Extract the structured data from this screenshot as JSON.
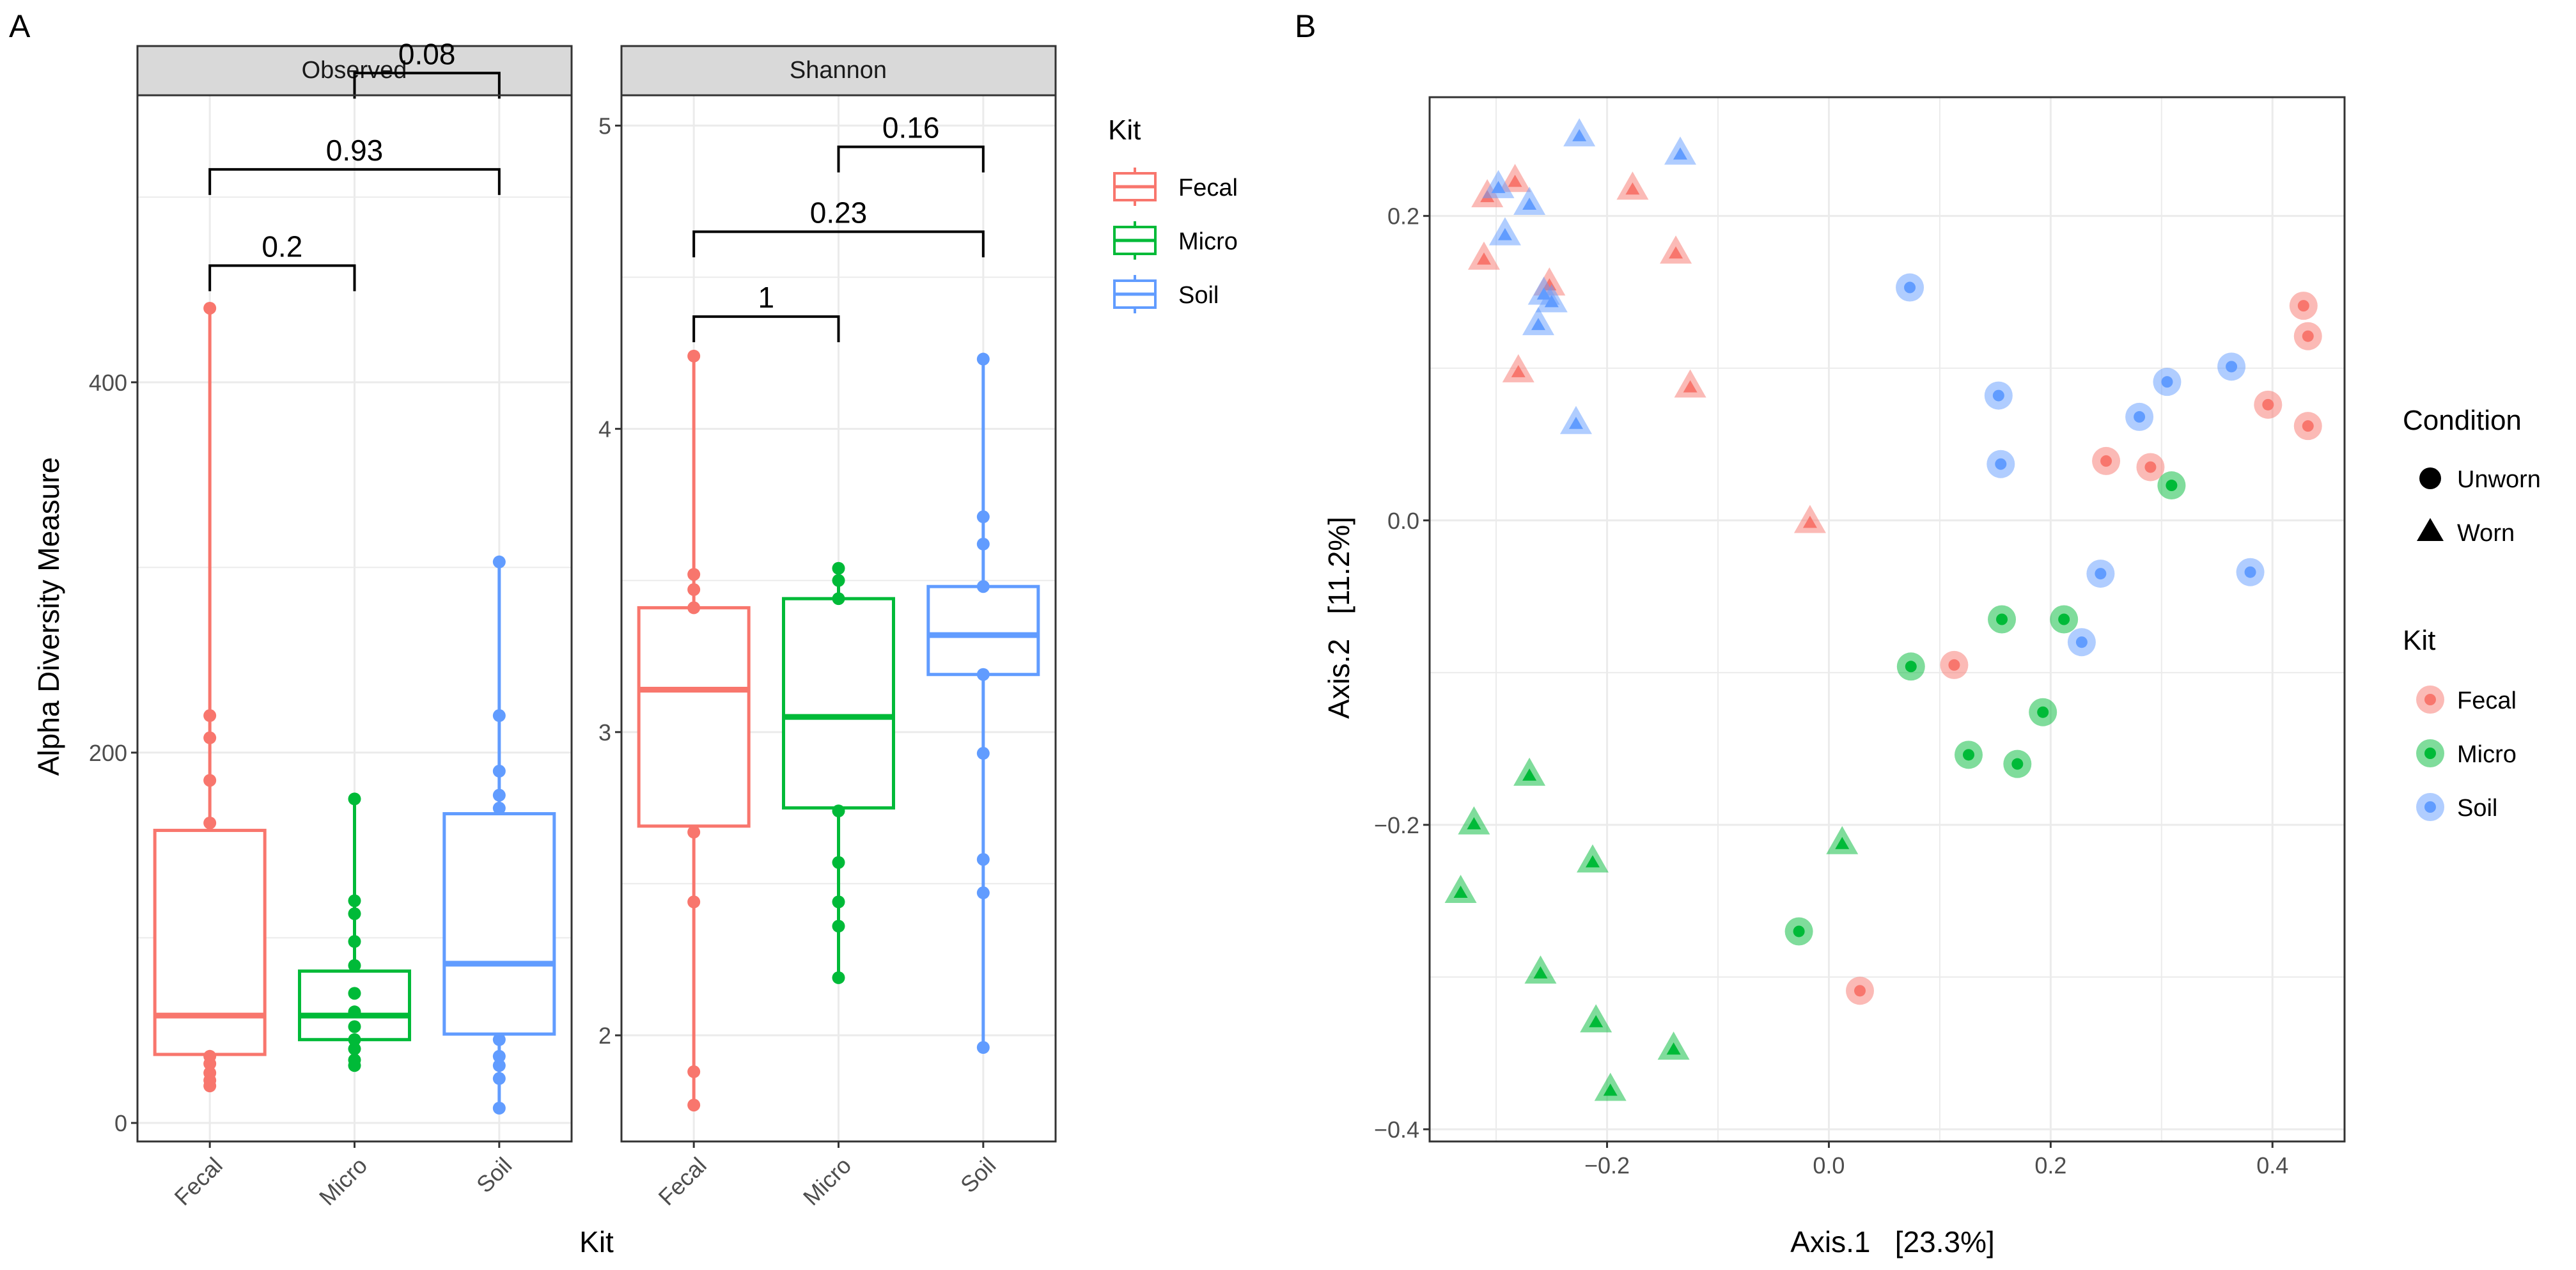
{
  "colors": {
    "Fecal": "#F8766D",
    "Micro": "#00BA38",
    "Soil": "#619CFF",
    "strip_fill": "#D9D9D9",
    "grid": "#EBEBEB",
    "axis_text": "#4D4D4D",
    "bracket": "#000000"
  },
  "panel_labels": {
    "a": "A",
    "b": "B"
  },
  "chart_data": [
    {
      "type": "boxplot",
      "panel": "A",
      "facet": "Observed",
      "xlabel": "Kit",
      "ylabel": "Alpha Diversity Measure",
      "categories": [
        "Fecal",
        "Micro",
        "Soil"
      ],
      "ylim": [
        -10,
        555
      ],
      "yticks": [
        0,
        200,
        400
      ],
      "minor_yticks": [
        100,
        300,
        500
      ],
      "boxes": [
        {
          "kit": "Fecal",
          "q1": 37,
          "median": 58,
          "q3": 158,
          "whisker_low": 20,
          "whisker_high": 440,
          "points": [
            20,
            23,
            27,
            32,
            36,
            162,
            185,
            208,
            220,
            440
          ]
        },
        {
          "kit": "Micro",
          "q1": 45,
          "median": 58,
          "q3": 82,
          "whisker_low": 31,
          "whisker_high": 175,
          "points": [
            31,
            34,
            40,
            45,
            52,
            60,
            70,
            85,
            98,
            113,
            120,
            175
          ]
        },
        {
          "kit": "Soil",
          "q1": 48,
          "median": 86,
          "q3": 167,
          "whisker_low": 8,
          "whisker_high": 303,
          "points": [
            8,
            24,
            31,
            36,
            45,
            170,
            177,
            190,
            220,
            303
          ]
        }
      ],
      "comparisons": [
        {
          "from": "Fecal",
          "to": "Micro",
          "label": "0.2",
          "y": 463
        },
        {
          "from": "Fecal",
          "to": "Soil",
          "label": "0.93",
          "y": 515
        },
        {
          "from": "Micro",
          "to": "Soil",
          "label": "0.08",
          "y": 567
        }
      ]
    },
    {
      "type": "boxplot",
      "panel": "A",
      "facet": "Shannon",
      "xlabel": "Kit",
      "ylabel": "Alpha Diversity Measure",
      "categories": [
        "Fecal",
        "Micro",
        "Soil"
      ],
      "ylim": [
        1.65,
        5.1
      ],
      "yticks": [
        2,
        3,
        4,
        5
      ],
      "minor_yticks": [
        2.5,
        3.5,
        4.5
      ],
      "boxes": [
        {
          "kit": "Fecal",
          "q1": 2.69,
          "median": 3.14,
          "q3": 3.41,
          "whisker_low": 1.77,
          "whisker_high": 4.24,
          "points": [
            1.77,
            1.88,
            2.44,
            2.67,
            3.41,
            3.47,
            3.52,
            4.24
          ]
        },
        {
          "kit": "Micro",
          "q1": 2.75,
          "median": 3.05,
          "q3": 3.44,
          "whisker_low": 2.19,
          "whisker_high": 3.54,
          "points": [
            2.19,
            2.36,
            2.44,
            2.57,
            2.74,
            3.44,
            3.5,
            3.54
          ]
        },
        {
          "kit": "Soil",
          "q1": 3.19,
          "median": 3.32,
          "q3": 3.48,
          "whisker_low": 1.96,
          "whisker_high": 4.23,
          "points": [
            1.96,
            2.47,
            2.58,
            2.93,
            3.19,
            3.48,
            3.62,
            3.71,
            4.23
          ]
        }
      ],
      "comparisons": [
        {
          "from": "Fecal",
          "to": "Micro",
          "label": "1",
          "y": 4.37
        },
        {
          "from": "Fecal",
          "to": "Soil",
          "label": "0.23",
          "y": 4.65
        },
        {
          "from": "Micro",
          "to": "Soil",
          "label": "0.16",
          "y": 4.93
        }
      ]
    },
    {
      "type": "scatter",
      "panel": "B",
      "xlabel": "Axis.1   [23.3%]",
      "ylabel": "Axis.2   [11.2%]",
      "xlim": [
        -0.36,
        0.465
      ],
      "ylim": [
        -0.408,
        0.278
      ],
      "xticks": [
        -0.2,
        0.0,
        0.2,
        0.4
      ],
      "xtick_labels": [
        "−0.2",
        "0.0",
        "0.2",
        "0.4"
      ],
      "yticks": [
        -0.4,
        -0.2,
        0.0,
        0.2
      ],
      "ytick_labels": [
        "−0.4",
        "−0.2",
        "0.0",
        "0.2"
      ],
      "minor_xticks": [
        -0.3,
        -0.1,
        0.1,
        0.3
      ],
      "minor_yticks": [
        -0.3,
        -0.1,
        0.1
      ],
      "points": [
        {
          "x": -0.308,
          "y": 0.212,
          "kit": "Fecal",
          "condition": "Worn"
        },
        {
          "x": -0.283,
          "y": 0.222,
          "kit": "Fecal",
          "condition": "Worn"
        },
        {
          "x": -0.177,
          "y": 0.217,
          "kit": "Fecal",
          "condition": "Worn"
        },
        {
          "x": -0.311,
          "y": 0.171,
          "kit": "Fecal",
          "condition": "Worn"
        },
        {
          "x": -0.252,
          "y": 0.154,
          "kit": "Fecal",
          "condition": "Worn"
        },
        {
          "x": -0.138,
          "y": 0.175,
          "kit": "Fecal",
          "condition": "Worn"
        },
        {
          "x": -0.28,
          "y": 0.097,
          "kit": "Fecal",
          "condition": "Worn"
        },
        {
          "x": -0.125,
          "y": 0.087,
          "kit": "Fecal",
          "condition": "Worn"
        },
        {
          "x": -0.017,
          "y": -0.002,
          "kit": "Fecal",
          "condition": "Worn"
        },
        {
          "x": 0.428,
          "y": 0.141,
          "kit": "Fecal",
          "condition": "Unworn"
        },
        {
          "x": 0.432,
          "y": 0.121,
          "kit": "Fecal",
          "condition": "Unworn"
        },
        {
          "x": 0.396,
          "y": 0.076,
          "kit": "Fecal",
          "condition": "Unworn"
        },
        {
          "x": 0.432,
          "y": 0.062,
          "kit": "Fecal",
          "condition": "Unworn"
        },
        {
          "x": 0.25,
          "y": 0.039,
          "kit": "Fecal",
          "condition": "Unworn"
        },
        {
          "x": 0.29,
          "y": 0.035,
          "kit": "Fecal",
          "condition": "Unworn"
        },
        {
          "x": 0.113,
          "y": -0.095,
          "kit": "Fecal",
          "condition": "Unworn"
        },
        {
          "x": 0.028,
          "y": -0.309,
          "kit": "Fecal",
          "condition": "Unworn"
        },
        {
          "x": -0.298,
          "y": 0.218,
          "kit": "Soil",
          "condition": "Worn"
        },
        {
          "x": -0.225,
          "y": 0.252,
          "kit": "Soil",
          "condition": "Worn"
        },
        {
          "x": -0.134,
          "y": 0.24,
          "kit": "Soil",
          "condition": "Worn"
        },
        {
          "x": -0.27,
          "y": 0.207,
          "kit": "Soil",
          "condition": "Worn"
        },
        {
          "x": -0.292,
          "y": 0.187,
          "kit": "Soil",
          "condition": "Worn"
        },
        {
          "x": -0.257,
          "y": 0.148,
          "kit": "Soil",
          "condition": "Worn"
        },
        {
          "x": -0.25,
          "y": 0.143,
          "kit": "Soil",
          "condition": "Worn"
        },
        {
          "x": -0.262,
          "y": 0.128,
          "kit": "Soil",
          "condition": "Worn"
        },
        {
          "x": -0.228,
          "y": 0.063,
          "kit": "Soil",
          "condition": "Worn"
        },
        {
          "x": 0.073,
          "y": 0.153,
          "kit": "Soil",
          "condition": "Unworn"
        },
        {
          "x": 0.153,
          "y": 0.082,
          "kit": "Soil",
          "condition": "Unworn"
        },
        {
          "x": 0.155,
          "y": 0.037,
          "kit": "Soil",
          "condition": "Unworn"
        },
        {
          "x": 0.305,
          "y": 0.091,
          "kit": "Soil",
          "condition": "Unworn"
        },
        {
          "x": 0.363,
          "y": 0.101,
          "kit": "Soil",
          "condition": "Unworn"
        },
        {
          "x": 0.28,
          "y": 0.068,
          "kit": "Soil",
          "condition": "Unworn"
        },
        {
          "x": 0.245,
          "y": -0.035,
          "kit": "Soil",
          "condition": "Unworn"
        },
        {
          "x": 0.228,
          "y": -0.08,
          "kit": "Soil",
          "condition": "Unworn"
        },
        {
          "x": 0.38,
          "y": -0.034,
          "kit": "Soil",
          "condition": "Unworn"
        },
        {
          "x": 0.309,
          "y": 0.023,
          "kit": "Micro",
          "condition": "Unworn"
        },
        {
          "x": 0.074,
          "y": -0.096,
          "kit": "Micro",
          "condition": "Unworn"
        },
        {
          "x": 0.156,
          "y": -0.065,
          "kit": "Micro",
          "condition": "Unworn"
        },
        {
          "x": 0.212,
          "y": -0.065,
          "kit": "Micro",
          "condition": "Unworn"
        },
        {
          "x": 0.193,
          "y": -0.126,
          "kit": "Micro",
          "condition": "Unworn"
        },
        {
          "x": 0.126,
          "y": -0.154,
          "kit": "Micro",
          "condition": "Unworn"
        },
        {
          "x": 0.17,
          "y": -0.16,
          "kit": "Micro",
          "condition": "Unworn"
        },
        {
          "x": -0.027,
          "y": -0.27,
          "kit": "Micro",
          "condition": "Unworn"
        },
        {
          "x": -0.27,
          "y": -0.168,
          "kit": "Micro",
          "condition": "Worn"
        },
        {
          "x": -0.32,
          "y": -0.2,
          "kit": "Micro",
          "condition": "Worn"
        },
        {
          "x": -0.332,
          "y": -0.245,
          "kit": "Micro",
          "condition": "Worn"
        },
        {
          "x": -0.213,
          "y": -0.225,
          "kit": "Micro",
          "condition": "Worn"
        },
        {
          "x": 0.012,
          "y": -0.213,
          "kit": "Micro",
          "condition": "Worn"
        },
        {
          "x": -0.26,
          "y": -0.298,
          "kit": "Micro",
          "condition": "Worn"
        },
        {
          "x": -0.21,
          "y": -0.33,
          "kit": "Micro",
          "condition": "Worn"
        },
        {
          "x": -0.14,
          "y": -0.348,
          "kit": "Micro",
          "condition": "Worn"
        },
        {
          "x": -0.197,
          "y": -0.375,
          "kit": "Micro",
          "condition": "Worn"
        }
      ]
    }
  ],
  "legend_a": {
    "title": "Kit",
    "items": [
      "Fecal",
      "Micro",
      "Soil"
    ]
  },
  "legend_b": {
    "condition_title": "Condition",
    "condition_items": [
      "Unworn",
      "Worn"
    ],
    "kit_title": "Kit",
    "kit_items": [
      "Fecal",
      "Micro",
      "Soil"
    ]
  }
}
